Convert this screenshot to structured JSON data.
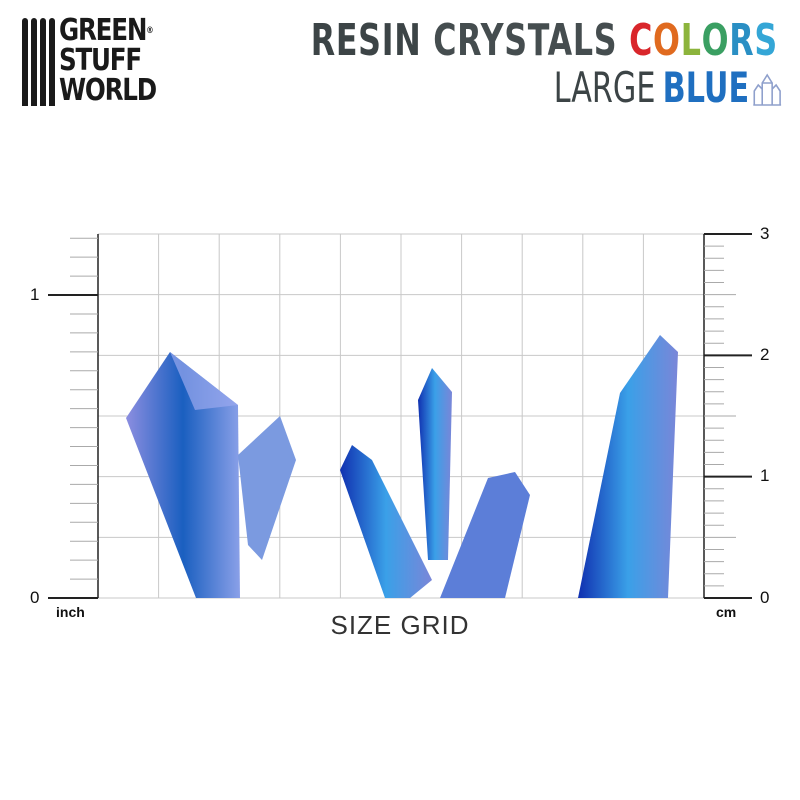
{
  "logo": {
    "line1": "GREEN",
    "line2": "STUFF",
    "line3": "WORLD",
    "registered": "®"
  },
  "title": {
    "word1": "RESIN",
    "word2": "CRYSTALS",
    "word3_letters": [
      {
        "ch": "C",
        "color": "#d9262b"
      },
      {
        "ch": "O",
        "color": "#e06a1f"
      },
      {
        "ch": "L",
        "color": "#8cb43c"
      },
      {
        "ch": "O",
        "color": "#3a9f62"
      },
      {
        "ch": "R",
        "color": "#2a8fc4"
      },
      {
        "ch": "S",
        "color": "#34a6d6"
      }
    ],
    "size": "LARGE",
    "color_name": "BLUE",
    "icon": "crystal-icon"
  },
  "rulers": {
    "left": {
      "unit": "inch",
      "labels": [
        "0",
        "1"
      ]
    },
    "right": {
      "unit": "cm",
      "labels": [
        "0",
        "1",
        "2",
        "3"
      ]
    }
  },
  "grid_title": "SIZE GRID",
  "colors": {
    "accent_blue": "#1f6fc0",
    "crystal_dark": "#1030b0",
    "crystal_light": "#3aa0e8",
    "crystal_lavender": "#8c8ee0"
  }
}
